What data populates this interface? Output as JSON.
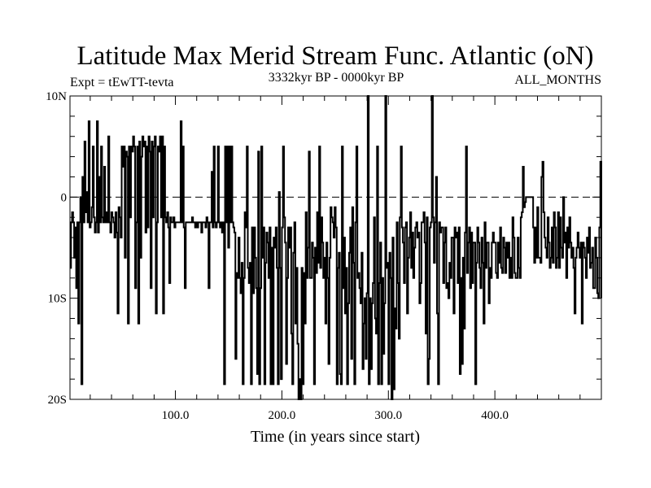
{
  "chart_data": {
    "type": "line",
    "title": "Latitude Max Merid Stream Func. Atlantic (oN)",
    "left_note": "Expt = tEwTT-tevta",
    "subtitle": "3332kyr BP - 0000kyr BP",
    "right_note": "ALL_MONTHS",
    "xlabel": "Time (in years since start)",
    "ylabel": "",
    "xlim": [
      1,
      500
    ],
    "ylim": [
      -20,
      10
    ],
    "x_ticks": [
      {
        "value": 100,
        "label": "100.0"
      },
      {
        "value": 200,
        "label": "200.0"
      },
      {
        "value": 300,
        "label": "300.0"
      },
      {
        "value": 400,
        "label": "400.0"
      }
    ],
    "y_ticks": [
      {
        "value": 10,
        "label": "10N"
      },
      {
        "value": 0,
        "label": "0"
      },
      {
        "value": -10,
        "label": "10S"
      },
      {
        "value": -20,
        "label": "20S"
      }
    ],
    "zero_line": true,
    "grid": false,
    "series": [
      {
        "values": [
          -7,
          -2.5,
          -1.5,
          -2.5,
          -6,
          -3,
          -9,
          -2.5,
          -12.5,
          -2.5,
          0,
          -18.5,
          2,
          -2.5,
          5.5,
          -1.5,
          0.5,
          -2.5,
          7.5,
          -3,
          -2.5,
          -1,
          5,
          -2,
          -3.5,
          -2.5,
          7.5,
          -3.5,
          2,
          -2.5,
          5,
          -2,
          -2.5,
          3,
          -2.5,
          -1.5,
          -2.5,
          6,
          -2.5,
          -3.5,
          -1.5,
          -2,
          -2.5,
          -4,
          -1.5,
          -3.5,
          -11.5,
          -1,
          -2,
          -4,
          5,
          3,
          5,
          -6,
          4.5,
          4,
          -12.5,
          5,
          -2,
          5,
          4.5,
          6,
          5,
          -9,
          -2.5,
          5,
          -12.5,
          5.5,
          -6,
          4,
          6,
          5,
          5.5,
          -3.5,
          5,
          -3,
          6,
          4.5,
          -9,
          5.5,
          -2,
          5,
          6,
          -11.5,
          -2.5,
          5,
          4.5,
          6,
          -2,
          6,
          -11.5,
          5,
          -2,
          -2.5,
          -1.5,
          -3,
          -8.5,
          -2,
          -2.5,
          -2.5,
          -2,
          -3,
          -2.5,
          -2.5,
          -2.5,
          -2.5,
          -2.5,
          7.5,
          -2.5,
          5,
          -3,
          -9,
          -2.5,
          -2.5,
          -2.5,
          -2.5,
          -2.5,
          -2.5,
          -2,
          -2.5,
          -2.5,
          -3,
          -2.5,
          -3,
          -2.5,
          -2.5,
          -2.5,
          -3.5,
          -2.5,
          -2.5,
          -2.5,
          -3,
          -2,
          -2.5,
          -9,
          -2.5,
          -2.5,
          2.5,
          -3,
          5,
          -2.5,
          -3,
          -2.5,
          5,
          -2.5,
          -3,
          -2.5,
          -3.5,
          -2.5,
          -18.5,
          5,
          -2.5,
          5,
          -5,
          5,
          -2.5,
          5,
          -2.5,
          -3,
          -3.5,
          -16,
          -7.5,
          -8,
          -4,
          -8,
          -9.5,
          -6.5,
          -18.5,
          -8,
          -1.5,
          -3,
          5,
          -7,
          -8.5,
          -6.5,
          -18.5,
          -3,
          -9.5,
          -3,
          -6,
          -9,
          -17.5,
          4.5,
          -18.5,
          -9,
          5,
          -6,
          -3,
          -18.5,
          -6.5,
          -3.5,
          -4.5,
          -8,
          -3,
          -18.5,
          -5,
          -18.5,
          -4,
          -5,
          -3,
          -7,
          -18.5,
          0.5,
          -7,
          -18,
          -3,
          5,
          -2,
          -4.5,
          -16.5,
          -8,
          -3,
          -5,
          -3,
          -13.5,
          -18.5,
          -5.5,
          -2.5,
          -12.5,
          -7,
          -14.5,
          -20,
          -18,
          -20,
          -7,
          -18.5,
          -7.5,
          -12.5,
          -1.5,
          -8,
          -5,
          4.5,
          -8,
          -8,
          -4.5,
          -6,
          -18.5,
          -5,
          -7.5,
          -1.5,
          -6.5,
          5,
          -7,
          -2,
          -4.5,
          -8,
          -6,
          -12.5,
          -4.5,
          -8,
          -16.5,
          -6,
          -1,
          -2,
          -2.5,
          -4,
          -1,
          -3,
          -18.5,
          -7,
          -5.5,
          -17.5,
          -18.5,
          5,
          -9,
          -4,
          -11.5,
          -7,
          -18.5,
          -10.5,
          -5.5,
          -3,
          -16,
          -1,
          -6.5,
          -18.5,
          -2.5,
          5,
          -8,
          -7.5,
          -9,
          -10.5,
          -5.5,
          -17,
          -12.5,
          -10,
          -16,
          -9.5,
          10,
          -18.5,
          -10,
          -17,
          -10.5,
          -8.5,
          -2,
          -12,
          -13.5,
          5,
          -18.5,
          -8.5,
          -4.5,
          -18.5,
          -8,
          -15.5,
          -10.5,
          10,
          -7,
          -6.5,
          -18.5,
          -5.5,
          -8,
          -20,
          -4,
          -19,
          -11,
          -13,
          -2.5,
          -8.5,
          -14,
          -2,
          5,
          -3,
          -4.5,
          -8.5,
          -3,
          -2.5,
          -11.5,
          -6,
          -4,
          -1.5,
          -7,
          -3.5,
          -8,
          -5,
          -3,
          -2.5,
          -4,
          -3.5,
          -10.5,
          -8.5,
          -2.5,
          -2.5,
          -1.5,
          -4.5,
          -13.5,
          -2,
          -18.5,
          -16,
          -3,
          -2.5,
          10,
          -2,
          -6.5,
          -2.5,
          2,
          -11.5,
          -18.5,
          -2.5,
          -3.5,
          -3,
          -3,
          -8.5,
          -4.5,
          -3,
          -9,
          -8.5,
          -10,
          -6.5,
          -8,
          -4,
          -4,
          -11.5,
          -3,
          -4,
          -3.5,
          -8.5,
          -3,
          -17.5,
          -8,
          -16.5,
          -6,
          -13,
          -3.5,
          5,
          -7.5,
          -4.5,
          -3,
          -9,
          -3.5,
          -8.5,
          -4.5,
          -4.5,
          -18.5,
          -6.5,
          -3,
          -4.5,
          -7,
          -9,
          -4,
          -6.5,
          -12.5,
          -2.5,
          -7,
          -4.5,
          -4.5,
          -10.5,
          -7,
          -8,
          -4.5,
          -3.5,
          -4.5,
          -4.5,
          -7.5,
          -8,
          -4.5,
          -6.5,
          -3,
          -7,
          -7.5,
          -4,
          -5,
          -7.5,
          -4.5,
          -6,
          -4.5,
          -8,
          -6,
          -8,
          -2,
          -4,
          -7.5,
          -8,
          -8,
          -4,
          -7,
          -8,
          -2,
          -1.5,
          3,
          -1,
          -0.5,
          0,
          0,
          0,
          0,
          0,
          0,
          0,
          -3,
          -6.5,
          -3,
          -6,
          -1,
          -6,
          -6,
          -6.5,
          2,
          3.5,
          -1.5,
          -4,
          -5,
          -6,
          -2,
          -4.5,
          -7,
          -6,
          -3,
          -6.5,
          -1.5,
          -3,
          -7,
          -6,
          -1.5,
          -7,
          -2,
          -5,
          -6,
          0,
          -4.5,
          -3.5,
          -8,
          -3,
          -5,
          -2,
          -4.5,
          -6,
          -5,
          -7,
          -11.5,
          -6,
          -5,
          -3.5,
          -5,
          -6,
          -4.5,
          -12.5,
          -4.5,
          -5,
          -6,
          -8,
          -4,
          -5.5,
          -3,
          -7,
          -6.5,
          -5,
          -9,
          -9,
          -4,
          -6,
          -9.5,
          -10,
          -3,
          3.5,
          -10
        ]
      }
    ]
  }
}
